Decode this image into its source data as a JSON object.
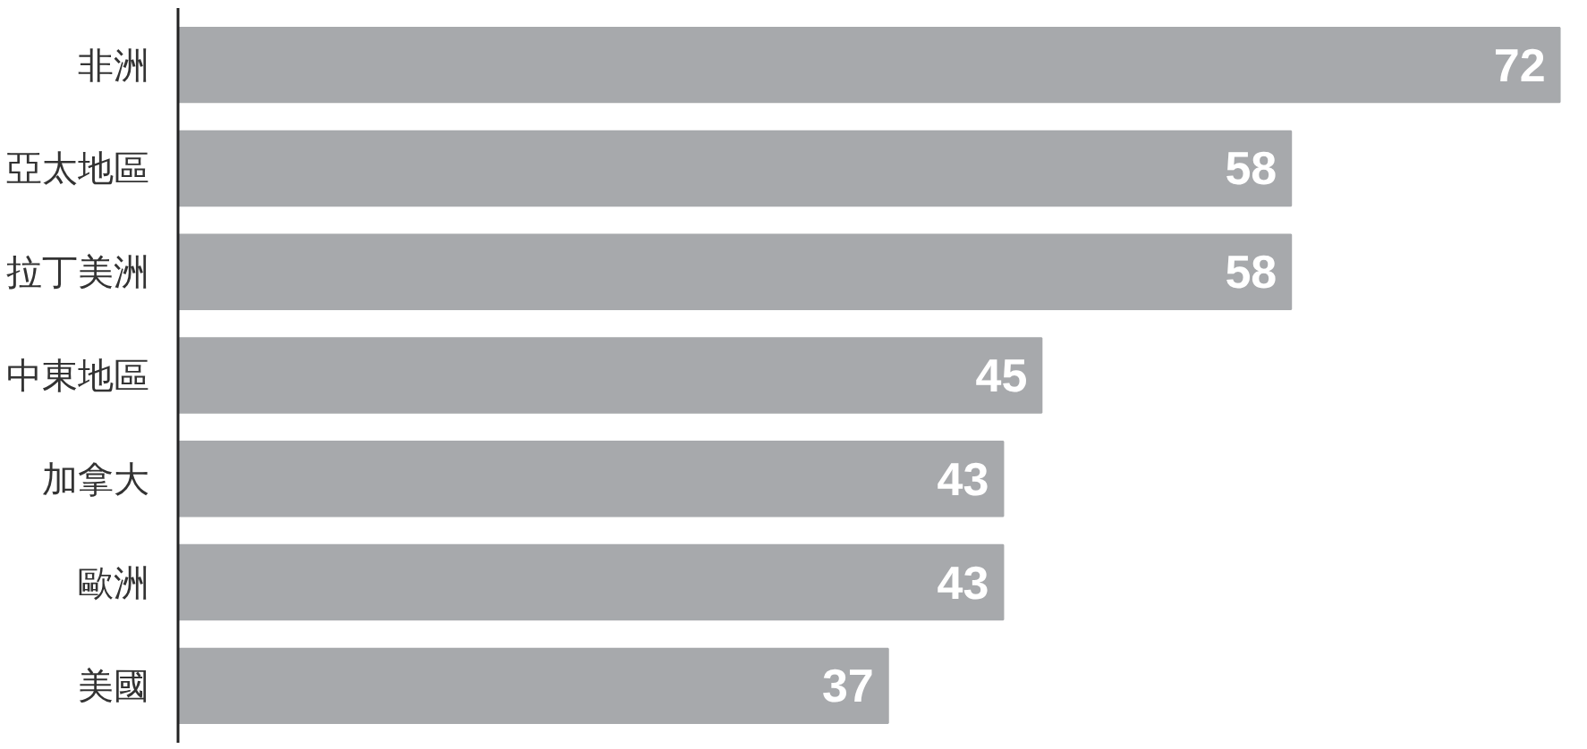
{
  "chart_data": {
    "type": "bar",
    "orientation": "horizontal",
    "categories": [
      "非洲",
      "亞太地區",
      "拉丁美洲",
      "中東地區",
      "加拿大",
      "歐洲",
      "美國"
    ],
    "values": [
      72,
      58,
      58,
      45,
      43,
      43,
      37
    ],
    "color": "#a7a9ac",
    "data_labels": true
  }
}
